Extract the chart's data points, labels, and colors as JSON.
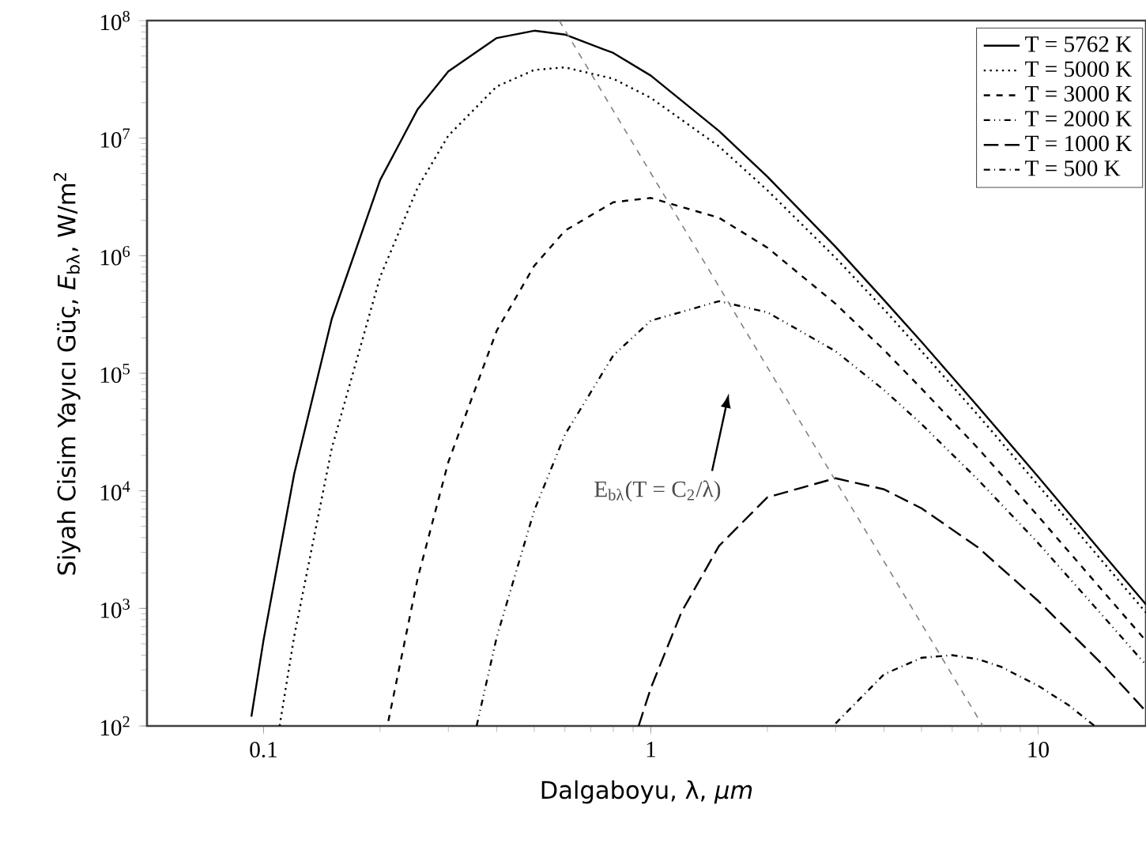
{
  "chart_data": {
    "type": "line",
    "xlabel": "Dalgaboyu, λ, *μm*",
    "ylabel": "Siyah Cisim Yayıcı Güç, *E*$_{bλ}$, W/m$^{2}$",
    "log": "xy",
    "xlim": [
      0.05,
      19
    ],
    "ylim": [
      100,
      100000000
    ],
    "xticks": [
      0.1,
      1,
      10
    ],
    "yticks": [
      {
        "value": 100,
        "label": "10$^{2}$"
      },
      {
        "value": 1000,
        "label": "10$^{3}$"
      },
      {
        "value": 10000,
        "label": "10$^{4}$"
      },
      {
        "value": 100000,
        "label": "10$^{5}$"
      },
      {
        "value": 1000000,
        "label": "10$^{6}$"
      },
      {
        "value": 10000000,
        "label": "10$^{7}$"
      },
      {
        "value": 100000000,
        "label": "10$^{8}$"
      }
    ],
    "legend": "top right",
    "series": [
      {
        "name": "T = 5762 K",
        "color": "#000000",
        "line_style": "solid",
        "x": [
          0.093,
          0.1,
          0.12,
          0.15,
          0.2,
          0.25,
          0.3,
          0.4,
          0.5,
          0.6,
          0.8,
          1,
          1.5,
          2,
          3,
          4,
          5,
          7,
          10,
          15,
          19
        ],
        "values": [
          120,
          540,
          14000,
          290000,
          4400000,
          17600000,
          37000000,
          71000000,
          82000000,
          76000000,
          53000000,
          34000000,
          11500000,
          4700000,
          1190000,
          420000,
          185000,
          52000,
          13200,
          2700,
          1080
        ]
      },
      {
        "name": "T = 5000 K",
        "color": "#000000",
        "line_style": "dotted",
        "x": [
          0.11,
          0.12,
          0.15,
          0.2,
          0.25,
          0.3,
          0.4,
          0.5,
          0.6,
          0.8,
          1,
          1.5,
          2,
          3,
          4,
          5,
          7,
          10,
          15,
          19
        ],
        "values": [
          100,
          580,
          23000,
          660000,
          3800000,
          10500000,
          27500000,
          38000000,
          40000000,
          32000000,
          22000000,
          8500000,
          3600000,
          960000,
          350000,
          154000,
          44000,
          11200,
          2300,
          920
        ]
      },
      {
        "name": "T = 3000 K",
        "color": "#000000",
        "line_style": "dashed",
        "x": [
          0.21,
          0.25,
          0.3,
          0.4,
          0.5,
          0.6,
          0.8,
          1,
          1.5,
          2,
          3,
          4,
          5,
          7,
          10,
          15,
          19
        ],
        "values": [
          110,
          1800,
          17600,
          230000,
          820000,
          1630000,
          2850000,
          3100000,
          2100000,
          1170000,
          390000,
          158000,
          74000,
          23000,
          6100,
          1300,
          530
        ]
      },
      {
        "name": "T = 2000 K",
        "color": "#000000",
        "line_style": "dashdotdot",
        "x": [
          0.355,
          0.4,
          0.5,
          0.6,
          0.8,
          1,
          1.5,
          2,
          3,
          4,
          5,
          7,
          10,
          15,
          19
        ],
        "values": [
          100,
          570,
          6800,
          30000,
          142000,
          280000,
          410000,
          330000,
          154000,
          72000,
          37000,
          12400,
          3600,
          800,
          330
        ]
      },
      {
        "name": "T = 1000 K",
        "color": "#000000",
        "line_style": "longdash",
        "x": [
          0.93,
          1,
          1.2,
          1.5,
          2,
          3,
          4,
          5,
          7,
          10,
          15,
          19
        ],
        "values": [
          100,
          210,
          930,
          3400,
          8800,
          12800,
          10300,
          7100,
          3300,
          1160,
          310,
          133
        ]
      },
      {
        "name": "T = 500 K",
        "color": "#000000",
        "line_style": "dashdot",
        "x": [
          3,
          4,
          5,
          6,
          7,
          8,
          10,
          12,
          14
        ],
        "values": [
          105,
          275,
          380,
          400,
          370,
          320,
          220,
          150,
          100
        ]
      },
      {
        "type": "line",
        "color": "#808080",
        "line_style": "dashed",
        "x": [
          0.58,
          7.2
        ],
        "values": [
          100000000,
          100
        ]
      }
    ],
    "annotations": [
      "E$_{bλ}$(T = C$_{2}$/λ)"
    ]
  }
}
